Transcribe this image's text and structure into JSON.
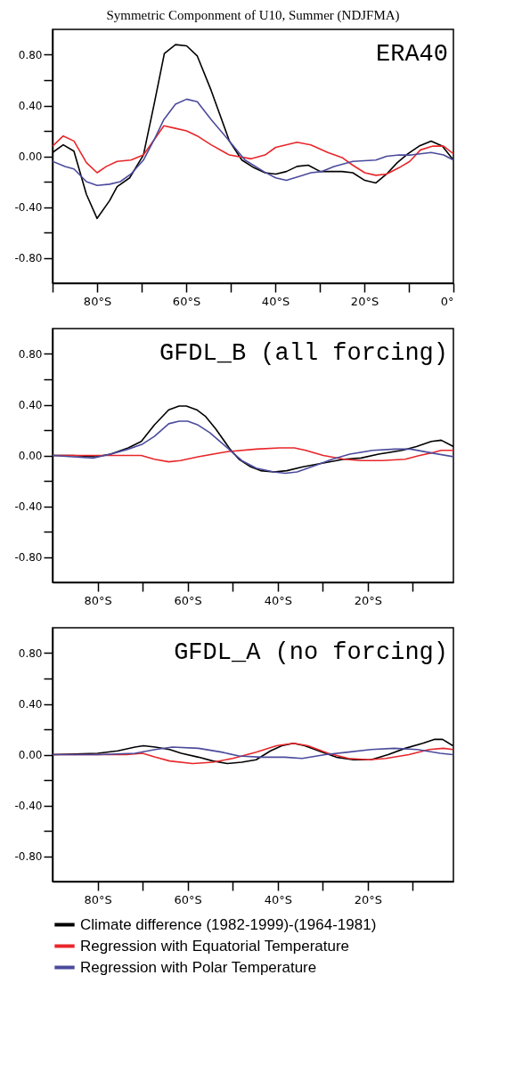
{
  "chart_data": [
    {
      "type": "line",
      "title": "Symmetric Componment of U10, Summer (NDJFMA)",
      "annotations": [
        "ERA40"
      ],
      "xlim": [
        -90,
        0
      ],
      "xticks": [
        {
          "value": -90,
          "label": null
        },
        {
          "value": -80,
          "label": "80°S"
        },
        {
          "value": -70,
          "label": null
        },
        {
          "value": -60,
          "label": "60°S"
        },
        {
          "value": -50,
          "label": null
        },
        {
          "value": -40,
          "label": "40°S"
        },
        {
          "value": -30,
          "label": null
        },
        {
          "value": -20,
          "label": "20°S"
        },
        {
          "value": -10,
          "label": null
        },
        {
          "value": 0,
          "label": "0°"
        }
      ],
      "ylim": [
        -1,
        1
      ],
      "yticks": [
        {
          "value": -0.8,
          "label": "-0.80"
        },
        {
          "value": -0.6,
          "label": null
        },
        {
          "value": -0.4,
          "label": "-0.40"
        },
        {
          "value": -0.2,
          "label": null
        },
        {
          "value": 0,
          "label": "0.00"
        },
        {
          "value": 0.2,
          "label": null
        },
        {
          "value": 0.4,
          "label": "0.40"
        },
        {
          "value": 0.6,
          "label": null
        },
        {
          "value": 0.8,
          "label": "0.80"
        }
      ],
      "series": [
        {
          "color": "#000000",
          "x": [
            -90,
            -87.6,
            -85.2,
            -82.4,
            -80,
            -77.2,
            -75.5,
            -72.7,
            -69.6,
            -67.2,
            -64.9,
            -62.4,
            -59.9,
            -57.5,
            -54.4,
            -50.3,
            -47.5,
            -44.8,
            -42.3,
            -39.9,
            -37.5,
            -35.1,
            -32.6,
            -29.9,
            -27.5,
            -25,
            -22.6,
            -19.9,
            -17.4,
            -15,
            -12.6,
            -10.2,
            -7.7,
            -5,
            -2.5,
            0
          ],
          "values": [
            0.03,
            0.09,
            0.04,
            -0.3,
            -0.49,
            -0.35,
            -0.24,
            -0.17,
            0.01,
            0.41,
            0.81,
            0.88,
            0.87,
            0.79,
            0.52,
            0.12,
            -0.03,
            -0.09,
            -0.13,
            -0.14,
            -0.12,
            -0.08,
            -0.07,
            -0.12,
            -0.12,
            -0.12,
            -0.13,
            -0.19,
            -0.21,
            -0.14,
            -0.05,
            0.02,
            0.08,
            0.12,
            0.08,
            -0.03
          ]
        },
        {
          "color": "#e8262a",
          "x": [
            -90,
            -87.6,
            -85.2,
            -82.4,
            -80,
            -77.9,
            -75.5,
            -72.4,
            -69.6,
            -67.2,
            -65,
            -62.4,
            -59.9,
            -57.5,
            -54.4,
            -50.3,
            -45.4,
            -42.3,
            -39.9,
            -35.1,
            -32,
            -28.2,
            -25,
            -22.6,
            -19.9,
            -17.4,
            -15,
            -12.2,
            -9.8,
            -7.4,
            -4.6,
            -2.2,
            0
          ],
          "values": [
            0.08,
            0.16,
            0.12,
            -0.05,
            -0.13,
            -0.08,
            -0.04,
            -0.03,
            0.01,
            0.13,
            0.24,
            0.22,
            0.2,
            0.16,
            0.09,
            0.01,
            -0.02,
            0.01,
            0.07,
            0.11,
            0.09,
            0.03,
            -0.01,
            -0.07,
            -0.13,
            -0.15,
            -0.14,
            -0.09,
            -0.04,
            0.05,
            0.08,
            0.08,
            0.02
          ]
        },
        {
          "color": "#4b4a9c",
          "x": [
            -90,
            -87.2,
            -85.2,
            -82.4,
            -80,
            -77.2,
            -74.8,
            -72.4,
            -69.6,
            -67.2,
            -65,
            -62.4,
            -59.9,
            -57.5,
            -54.4,
            -50.3,
            -46.8,
            -42.6,
            -39.9,
            -37.5,
            -34.7,
            -32,
            -29.5,
            -26.8,
            -22.6,
            -17.4,
            -15,
            -12.2,
            -9.5,
            -5,
            -2.2,
            0
          ],
          "values": [
            -0.04,
            -0.08,
            -0.1,
            -0.2,
            -0.23,
            -0.22,
            -0.2,
            -0.14,
            -0.03,
            0.13,
            0.29,
            0.41,
            0.45,
            0.43,
            0.29,
            0.12,
            -0.03,
            -0.12,
            -0.17,
            -0.19,
            -0.16,
            -0.13,
            -0.12,
            -0.08,
            -0.04,
            -0.03,
            0,
            0.01,
            0.01,
            0.03,
            0.01,
            -0.03
          ]
        }
      ]
    },
    {
      "type": "line",
      "annotations": [
        "GFDL_B (all forcing)"
      ],
      "xlim": [
        -90,
        -1
      ],
      "xticks": [
        {
          "value": -80,
          "label": "80°S"
        },
        {
          "value": -70,
          "label": null
        },
        {
          "value": -60,
          "label": "60°S"
        },
        {
          "value": -50,
          "label": null
        },
        {
          "value": -40,
          "label": "40°S"
        },
        {
          "value": -30,
          "label": null
        },
        {
          "value": -20,
          "label": "20°S"
        },
        {
          "value": -10,
          "label": null
        }
      ],
      "ylim": [
        -1,
        1
      ],
      "yticks": [
        {
          "value": -0.8,
          "label": "-0.80"
        },
        {
          "value": -0.6,
          "label": null
        },
        {
          "value": -0.4,
          "label": "-0.40"
        },
        {
          "value": -0.2,
          "label": null
        },
        {
          "value": 0,
          "label": "0.00"
        },
        {
          "value": 0.2,
          "label": null
        },
        {
          "value": 0.4,
          "label": "0.40"
        },
        {
          "value": 0.6,
          "label": null
        },
        {
          "value": 0.8,
          "label": "0.80"
        }
      ],
      "series": [
        {
          "color": "#000000",
          "x": [
            -90,
            -85.5,
            -80.4,
            -77.1,
            -73.2,
            -70.3,
            -67.4,
            -64.2,
            -61.9,
            -60.3,
            -58,
            -56.1,
            -53.8,
            -50.6,
            -48.6,
            -46,
            -43.8,
            -40.9,
            -38,
            -34.4,
            -29.9,
            -25.3,
            -21.5,
            -17.6,
            -12.4,
            -9.2,
            -5.9,
            -3.7,
            -1
          ],
          "values": [
            0,
            0,
            -0.01,
            0.01,
            0.06,
            0.11,
            0.24,
            0.36,
            0.39,
            0.39,
            0.36,
            0.31,
            0.21,
            0.05,
            -0.03,
            -0.09,
            -0.12,
            -0.13,
            -0.12,
            -0.09,
            -0.06,
            -0.03,
            -0.02,
            0.01,
            0.04,
            0.07,
            0.11,
            0.12,
            0.07
          ]
        },
        {
          "color": "#e8262a",
          "x": [
            -90,
            -84.9,
            -81,
            -77.1,
            -71.9,
            -70.3,
            -67.4,
            -64.2,
            -61.6,
            -57.7,
            -51.2,
            -44.8,
            -39.6,
            -36.3,
            -33.8,
            -29.9,
            -25.3,
            -21.5,
            -16.9,
            -11.7,
            -8.5,
            -5.9,
            -3.7,
            -1
          ],
          "values": [
            0,
            0,
            0,
            0,
            0,
            0,
            -0.03,
            -0.05,
            -0.04,
            -0.01,
            0.03,
            0.05,
            0.06,
            0.06,
            0.04,
            0,
            -0.03,
            -0.04,
            -0.04,
            -0.03,
            0,
            0.02,
            0.04,
            0.04
          ]
        },
        {
          "color": "#4b4a9c",
          "x": [
            -90,
            -85.5,
            -81,
            -77.1,
            -73.2,
            -70,
            -67.4,
            -64.2,
            -61.9,
            -60,
            -57.7,
            -55.1,
            -51.2,
            -48,
            -44.8,
            -40.9,
            -38.3,
            -35.7,
            -31.8,
            -27.9,
            -24,
            -18.9,
            -14,
            -10.5,
            -5.9,
            -1
          ],
          "values": [
            0,
            -0.01,
            -0.02,
            0.01,
            0.05,
            0.09,
            0.15,
            0.25,
            0.27,
            0.27,
            0.24,
            0.18,
            0.06,
            -0.04,
            -0.1,
            -0.13,
            -0.14,
            -0.13,
            -0.08,
            -0.03,
            0.01,
            0.04,
            0.05,
            0.05,
            0.02,
            -0.01
          ]
        }
      ]
    },
    {
      "type": "line",
      "annotations": [
        "GFDL_A (no forcing)"
      ],
      "legend": "bottom",
      "xlim": [
        -90,
        -1
      ],
      "xticks": [
        {
          "value": -80,
          "label": "80°S"
        },
        {
          "value": -70,
          "label": null
        },
        {
          "value": -60,
          "label": "60°S"
        },
        {
          "value": -50,
          "label": null
        },
        {
          "value": -40,
          "label": "40°S"
        },
        {
          "value": -30,
          "label": null
        },
        {
          "value": -20,
          "label": "20°S"
        },
        {
          "value": -10,
          "label": null
        }
      ],
      "ylim": [
        -1,
        1
      ],
      "yticks": [
        {
          "value": -0.8,
          "label": "-0.80"
        },
        {
          "value": -0.6,
          "label": null
        },
        {
          "value": -0.4,
          "label": "-0.40"
        },
        {
          "value": -0.2,
          "label": null
        },
        {
          "value": 0,
          "label": "0.00"
        },
        {
          "value": 0.2,
          "label": null
        },
        {
          "value": 0.4,
          "label": "0.40"
        },
        {
          "value": 0.6,
          "label": null
        },
        {
          "value": 0.8,
          "label": "0.80"
        }
      ],
      "series": [
        {
          "name": "Climate difference (1982-1999)-(1964-1981)",
          "color": "#000000",
          "x": [
            -90,
            -80,
            -75.5,
            -71.7,
            -69.8,
            -67.2,
            -64,
            -61.4,
            -57.6,
            -54.4,
            -51.2,
            -48,
            -44.8,
            -41.6,
            -39.1,
            -36.5,
            -34,
            -30.1,
            -27,
            -23.2,
            -19.3,
            -15.5,
            -11.7,
            -7.8,
            -5.3,
            -3.4,
            -1.1
          ],
          "values": [
            0,
            0.01,
            0.03,
            0.06,
            0.07,
            0.06,
            0.04,
            0.01,
            -0.02,
            -0.05,
            -0.07,
            -0.06,
            -0.04,
            0.03,
            0.07,
            0.09,
            0.07,
            0.02,
            -0.02,
            -0.04,
            -0.04,
            0,
            0.05,
            0.09,
            0.12,
            0.12,
            0.07
          ]
        },
        {
          "name": "Regression with Equatorial Temperature",
          "color": "#e8262a",
          "x": [
            -90,
            -80,
            -73.6,
            -70,
            -67.2,
            -64,
            -58.9,
            -54.4,
            -50,
            -44.8,
            -40.3,
            -36.5,
            -33.3,
            -28.8,
            -24.3,
            -19.8,
            -16,
            -10.9,
            -6.4,
            -3.2,
            -1.1
          ],
          "values": [
            0,
            0,
            0,
            0.01,
            -0.02,
            -0.05,
            -0.07,
            -0.06,
            -0.03,
            0.02,
            0.07,
            0.09,
            0.07,
            0.01,
            -0.03,
            -0.04,
            -0.03,
            0,
            0.04,
            0.05,
            0.04
          ]
        },
        {
          "name": "Regression with  Polar Temperature",
          "color": "#4b4a9c",
          "x": [
            -90,
            -80,
            -71.7,
            -67.2,
            -63.4,
            -57.6,
            -52.5,
            -48.6,
            -43.5,
            -38.4,
            -34.6,
            -29.5,
            -24.3,
            -19.3,
            -14.1,
            -9,
            -3.9,
            -1.1
          ],
          "values": [
            0,
            0,
            0.01,
            0.04,
            0.06,
            0.05,
            0.02,
            -0.01,
            -0.02,
            -0.02,
            -0.03,
            0,
            0.02,
            0.04,
            0.05,
            0.04,
            0.01,
            0
          ]
        }
      ]
    }
  ]
}
